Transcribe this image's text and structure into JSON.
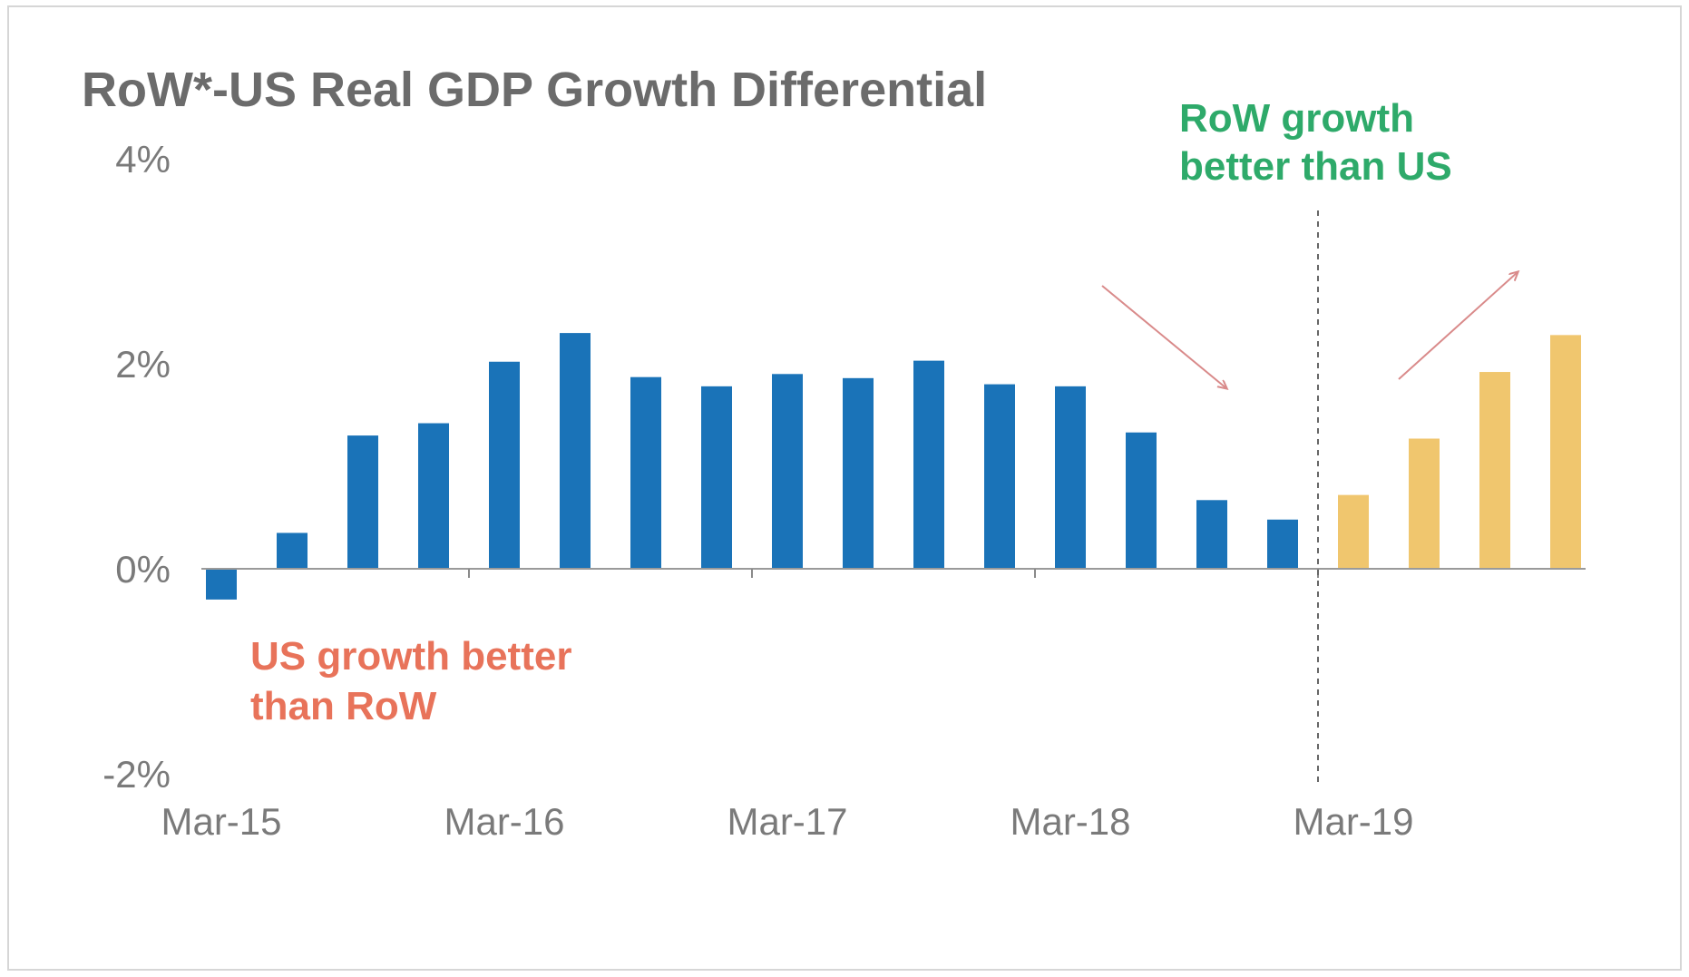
{
  "chart_data": {
    "type": "bar",
    "title": "RoW*-US Real GDP Growth Differential",
    "xlabel": "",
    "ylabel": "",
    "ylim": [
      -2,
      4
    ],
    "y_ticks": [
      "4%",
      "2%",
      "0%",
      "-2%"
    ],
    "y_tick_values": [
      4,
      2,
      0,
      -2
    ],
    "x_ticks": [
      "Mar-15",
      "Mar-16",
      "Mar-17",
      "Mar-18",
      "Mar-19"
    ],
    "x_tick_categories": [
      "Mar-15",
      "Mar-16",
      "Mar-17",
      "Mar-18",
      "Mar-19"
    ],
    "categories": [
      "Mar-15",
      "Jun-15",
      "Sep-15",
      "Dec-15",
      "Mar-16",
      "Jun-16",
      "Sep-16",
      "Dec-16",
      "Mar-17",
      "Jun-17",
      "Sep-17",
      "Dec-17",
      "Mar-18",
      "Jun-18",
      "Sep-18",
      "Dec-18",
      "Mar-19",
      "Jun-19",
      "Sep-19",
      "Dec-19"
    ],
    "series": [
      {
        "name": "",
        "color": "#1a73b8",
        "values": [
          -0.3,
          0.35,
          1.3,
          1.42,
          2.02,
          2.3,
          1.87,
          1.78,
          1.9,
          1.86,
          2.03,
          1.8,
          1.78,
          1.33,
          0.67,
          0.48,
          null,
          null,
          null,
          null
        ]
      },
      {
        "name": "",
        "color": "#f0c66e",
        "values": [
          null,
          null,
          null,
          null,
          null,
          null,
          null,
          null,
          null,
          null,
          null,
          null,
          null,
          null,
          null,
          null,
          0.72,
          1.27,
          1.92,
          2.28
        ]
      }
    ],
    "divider_between": [
      "Dec-18",
      "Mar-19"
    ],
    "annotations": [
      {
        "lines": [
          "RoW growth",
          "better than US"
        ],
        "color": "#2eaa6a"
      },
      {
        "lines": [
          "US growth better",
          "than RoW"
        ],
        "color": "#e8735a"
      }
    ],
    "grid": false,
    "legend": "none"
  }
}
